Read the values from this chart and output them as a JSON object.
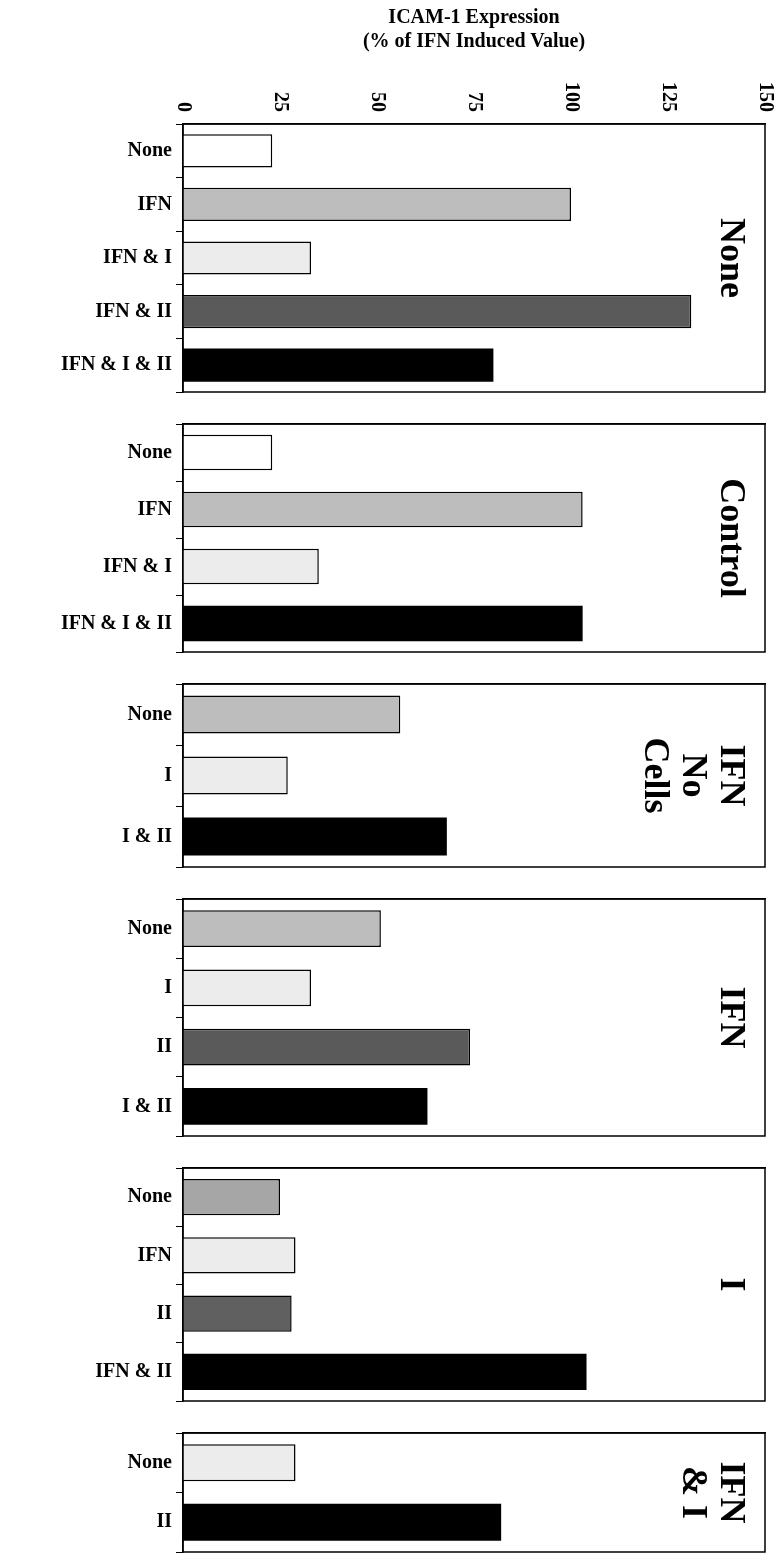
{
  "chart_data": [
    {
      "type": "bar",
      "orientation": "horizontal",
      "xlabel": "ICAM-1 Expression\n(% of IFN Induced Value)",
      "categories": [
        "None",
        "IFN",
        "IFN & I",
        "IFN & II",
        "IFN & I & II"
      ],
      "values": [
        23,
        100,
        33,
        131,
        80
      ],
      "colors": [
        "#ffffff",
        "#bdbdbd",
        "#ececec",
        "#5a5a5a",
        "#000000"
      ],
      "xlim": [
        0,
        150
      ],
      "xticks": [
        0,
        25,
        50,
        75,
        100,
        125,
        150
      ],
      "annotations": [
        "None"
      ]
    },
    {
      "type": "bar",
      "orientation": "horizontal",
      "categories": [
        "None",
        "IFN",
        "IFN & I",
        "IFN & I & II"
      ],
      "values": [
        23,
        103,
        35,
        103
      ],
      "colors": [
        "#ffffff",
        "#bdbdbd",
        "#ececec",
        "#000000"
      ],
      "xlim": [
        0,
        150
      ],
      "xticks": [
        0,
        25,
        50,
        75,
        100,
        125,
        150
      ],
      "tick_labels": "y",
      "annotations": [
        "Control"
      ]
    },
    {
      "type": "bar",
      "orientation": "horizontal",
      "categories": [
        "None",
        "I",
        "I & II"
      ],
      "values": [
        56,
        27,
        68
      ],
      "colors": [
        "#bdbdbd",
        "#ececec",
        "#000000"
      ],
      "xlim": [
        0,
        150
      ],
      "xticks": [
        0,
        25,
        50,
        75,
        100,
        125,
        150
      ],
      "tick_labels": "y",
      "annotations": [
        "IFN\nNo\nCells"
      ]
    },
    {
      "type": "bar",
      "orientation": "horizontal",
      "categories": [
        "None",
        "I",
        "II",
        "I & II"
      ],
      "values": [
        51,
        33,
        74,
        63
      ],
      "colors": [
        "#bdbdbd",
        "#ececec",
        "#5a5a5a",
        "#000000"
      ],
      "xlim": [
        0,
        150
      ],
      "xticks": [
        0,
        25,
        50,
        75,
        100,
        125,
        150
      ],
      "tick_labels": "y",
      "annotations": [
        "IFN"
      ]
    },
    {
      "type": "bar",
      "orientation": "horizontal",
      "categories": [
        "None",
        "IFN",
        "II",
        "IFN & II"
      ],
      "values": [
        25,
        29,
        28,
        104
      ],
      "colors": [
        "#a6a6a6",
        "#ececec",
        "#606060",
        "#000000"
      ],
      "xlim": [
        0,
        150
      ],
      "xticks": [
        0,
        25,
        50,
        75,
        100,
        125,
        150
      ],
      "tick_labels": "y",
      "annotations": [
        "I"
      ]
    },
    {
      "type": "bar",
      "orientation": "horizontal",
      "categories": [
        "None",
        "II"
      ],
      "values": [
        29,
        82
      ],
      "colors": [
        "#ececec",
        "#000000"
      ],
      "xlim": [
        0,
        150
      ],
      "xticks": [
        0,
        25,
        50,
        75,
        100,
        125,
        150
      ],
      "tick_labels": "y",
      "annotations": [
        "IFN\n& I"
      ]
    }
  ]
}
